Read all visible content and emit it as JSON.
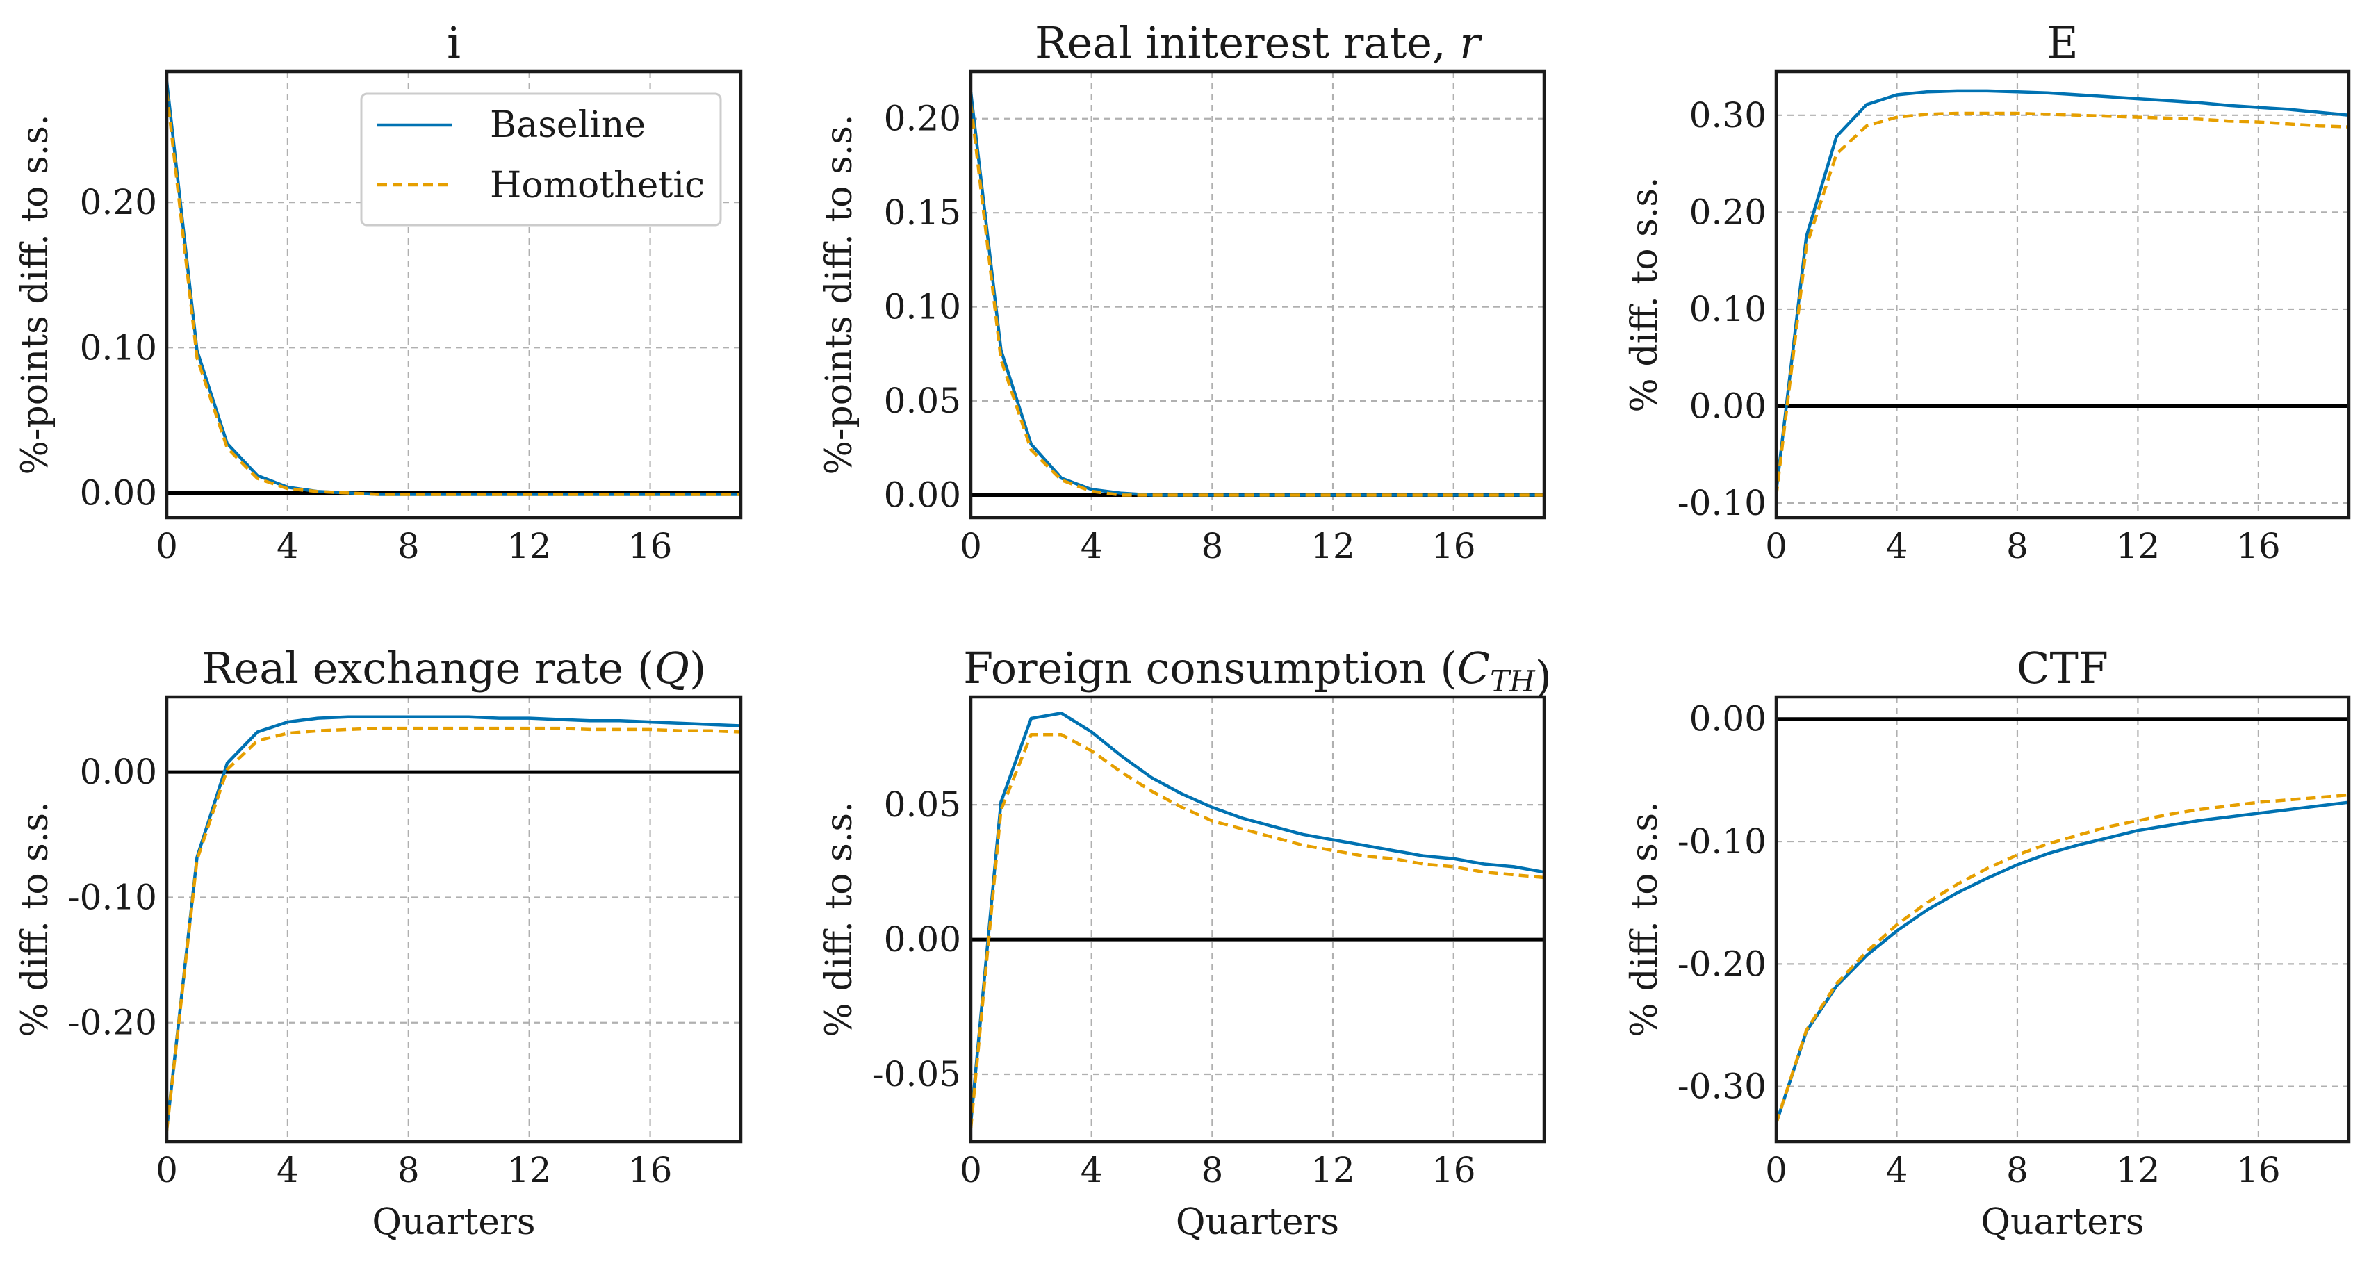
{
  "figure": {
    "legend": {
      "baseline": "Baseline",
      "homothetic": "Homothetic"
    },
    "colors": {
      "baseline": "#0072B2",
      "homothetic": "#E69F00",
      "zero_line": "#000000",
      "grid": "#b0b0b0"
    }
  },
  "chart_data": [
    {
      "type": "line",
      "title": "i",
      "title_parts": [
        {
          "text": "i"
        }
      ],
      "xlabel": "",
      "ylabel": "%-points diff. to s.s.",
      "xlim": [
        0,
        19
      ],
      "ylim": [
        -0.017,
        0.29
      ],
      "xticks": [
        0,
        4,
        8,
        12,
        16
      ],
      "xtick_labels": [
        "0",
        "4",
        "8",
        "12",
        "16"
      ],
      "yticks": [
        0.0,
        0.1,
        0.2
      ],
      "ytick_labels": [
        "0.00",
        "0.10",
        "0.20"
      ],
      "zero_line": true,
      "grid": true,
      "legend": "top-right",
      "x": [
        0,
        1,
        2,
        3,
        4,
        5,
        6,
        7,
        8,
        9,
        10,
        11,
        12,
        13,
        14,
        15,
        16,
        17,
        18,
        19
      ],
      "series": [
        {
          "name": "Baseline",
          "style": "solid",
          "values": [
            0.283,
            0.098,
            0.034,
            0.012,
            0.004,
            0.001,
            0.0,
            -0.001,
            -0.001,
            -0.001,
            -0.001,
            -0.001,
            -0.001,
            -0.001,
            -0.001,
            -0.001,
            -0.001,
            -0.001,
            -0.001,
            -0.001
          ]
        },
        {
          "name": "Homothetic",
          "style": "dashed",
          "values": [
            0.276,
            0.093,
            0.031,
            0.01,
            0.003,
            0.001,
            0.0,
            -0.001,
            -0.001,
            -0.001,
            -0.001,
            -0.001,
            -0.001,
            -0.001,
            -0.001,
            -0.001,
            -0.001,
            -0.001,
            -0.001,
            -0.001
          ]
        }
      ]
    },
    {
      "type": "line",
      "title": "Real initerest rate, r",
      "title_parts": [
        {
          "text": "Real initerest rate, "
        },
        {
          "text": "r",
          "italic": true
        }
      ],
      "xlabel": "",
      "ylabel": "%-points diff. to s.s.",
      "xlim": [
        0,
        19
      ],
      "ylim": [
        -0.012,
        0.225
      ],
      "xticks": [
        0,
        4,
        8,
        12,
        16
      ],
      "xtick_labels": [
        "0",
        "4",
        "8",
        "12",
        "16"
      ],
      "yticks": [
        0.0,
        0.05,
        0.1,
        0.15,
        0.2
      ],
      "ytick_labels": [
        "0.00",
        "0.05",
        "0.10",
        "0.15",
        "0.20"
      ],
      "zero_line": true,
      "grid": true,
      "x": [
        0,
        1,
        2,
        3,
        4,
        5,
        6,
        7,
        8,
        9,
        10,
        11,
        12,
        13,
        14,
        15,
        16,
        17,
        18,
        19
      ],
      "series": [
        {
          "name": "Baseline",
          "style": "solid",
          "values": [
            0.214,
            0.077,
            0.027,
            0.009,
            0.003,
            0.001,
            0.0,
            0.0,
            0.0,
            0.0,
            0.0,
            0.0,
            0.0,
            0.0,
            0.0,
            0.0,
            0.0,
            0.0,
            0.0,
            0.0
          ]
        },
        {
          "name": "Homothetic",
          "style": "dashed",
          "values": [
            0.208,
            0.072,
            0.024,
            0.008,
            0.002,
            0.0,
            0.0,
            0.0,
            0.0,
            0.0,
            0.0,
            0.0,
            0.0,
            0.0,
            0.0,
            0.0,
            0.0,
            0.0,
            0.0,
            0.0
          ]
        }
      ]
    },
    {
      "type": "line",
      "title": "E",
      "title_parts": [
        {
          "text": "E"
        }
      ],
      "xlabel": "",
      "ylabel": "% diff. to s.s.",
      "xlim": [
        0,
        19
      ],
      "ylim": [
        -0.115,
        0.345
      ],
      "xticks": [
        0,
        4,
        8,
        12,
        16
      ],
      "xtick_labels": [
        "0",
        "4",
        "8",
        "12",
        "16"
      ],
      "yticks": [
        -0.1,
        0.0,
        0.1,
        0.2,
        0.3
      ],
      "ytick_labels": [
        "-0.10",
        "0.00",
        "0.10",
        "0.20",
        "0.30"
      ],
      "zero_line": true,
      "grid": true,
      "x": [
        0,
        1,
        2,
        3,
        4,
        5,
        6,
        7,
        8,
        9,
        10,
        11,
        12,
        13,
        14,
        15,
        16,
        17,
        18,
        19
      ],
      "series": [
        {
          "name": "Baseline",
          "style": "solid",
          "values": [
            -0.088,
            0.175,
            0.278,
            0.311,
            0.321,
            0.324,
            0.325,
            0.325,
            0.324,
            0.323,
            0.321,
            0.319,
            0.317,
            0.315,
            0.313,
            0.31,
            0.308,
            0.306,
            0.303,
            0.3
          ]
        },
        {
          "name": "Homothetic",
          "style": "dashed",
          "values": [
            -0.093,
            0.165,
            0.26,
            0.289,
            0.298,
            0.301,
            0.302,
            0.302,
            0.302,
            0.301,
            0.3,
            0.299,
            0.298,
            0.297,
            0.296,
            0.294,
            0.293,
            0.291,
            0.289,
            0.288
          ]
        }
      ]
    },
    {
      "type": "line",
      "title": "Real exchange rate (Q)",
      "title_parts": [
        {
          "text": "Real exchange rate ("
        },
        {
          "text": "Q",
          "italic": true
        },
        {
          "text": ")"
        }
      ],
      "xlabel": "Quarters",
      "ylabel": "% diff. to s.s.",
      "xlim": [
        0,
        19
      ],
      "ylim": [
        -0.295,
        0.06
      ],
      "xticks": [
        0,
        4,
        8,
        12,
        16
      ],
      "xtick_labels": [
        "0",
        "4",
        "8",
        "12",
        "16"
      ],
      "yticks": [
        -0.2,
        -0.1,
        0.0
      ],
      "ytick_labels": [
        "-0.20",
        "-0.10",
        "0.00"
      ],
      "zero_line": true,
      "grid": true,
      "x": [
        0,
        1,
        2,
        3,
        4,
        5,
        6,
        7,
        8,
        9,
        10,
        11,
        12,
        13,
        14,
        15,
        16,
        17,
        18,
        19
      ],
      "series": [
        {
          "name": "Baseline",
          "style": "solid",
          "values": [
            -0.285,
            -0.068,
            0.007,
            0.032,
            0.04,
            0.043,
            0.044,
            0.044,
            0.044,
            0.044,
            0.044,
            0.043,
            0.043,
            0.042,
            0.041,
            0.041,
            0.04,
            0.039,
            0.038,
            0.037
          ]
        },
        {
          "name": "Homothetic",
          "style": "dashed",
          "values": [
            -0.286,
            -0.07,
            0.002,
            0.025,
            0.031,
            0.033,
            0.034,
            0.035,
            0.035,
            0.035,
            0.035,
            0.035,
            0.035,
            0.035,
            0.034,
            0.034,
            0.034,
            0.033,
            0.033,
            0.032
          ]
        }
      ]
    },
    {
      "type": "line",
      "title": "Foreign consumption (C_TH)",
      "title_parts": [
        {
          "text": "Foreign consumption ("
        },
        {
          "text": "C",
          "italic": true
        },
        {
          "text": "TH",
          "italic": true,
          "sub": true
        },
        {
          "text": ")"
        }
      ],
      "xlabel": "Quarters",
      "ylabel": "% diff. to s.s.",
      "xlim": [
        0,
        19
      ],
      "ylim": [
        -0.075,
        0.09
      ],
      "xticks": [
        0,
        4,
        8,
        12,
        16
      ],
      "xtick_labels": [
        "0",
        "4",
        "8",
        "12",
        "16"
      ],
      "yticks": [
        -0.05,
        0.0,
        0.05
      ],
      "ytick_labels": [
        "-0.05",
        "0.00",
        "0.05"
      ],
      "zero_line": true,
      "grid": true,
      "x": [
        0,
        1,
        2,
        3,
        4,
        5,
        6,
        7,
        8,
        9,
        10,
        11,
        12,
        13,
        14,
        15,
        16,
        17,
        18,
        19
      ],
      "series": [
        {
          "name": "Baseline",
          "style": "solid",
          "values": [
            -0.068,
            0.051,
            0.082,
            0.084,
            0.077,
            0.068,
            0.06,
            0.054,
            0.049,
            0.045,
            0.042,
            0.039,
            0.037,
            0.035,
            0.033,
            0.031,
            0.03,
            0.028,
            0.027,
            0.025
          ]
        },
        {
          "name": "Homothetic",
          "style": "dashed",
          "values": [
            -0.07,
            0.048,
            0.076,
            0.076,
            0.07,
            0.062,
            0.055,
            0.049,
            0.044,
            0.041,
            0.038,
            0.035,
            0.033,
            0.031,
            0.03,
            0.028,
            0.027,
            0.025,
            0.024,
            0.023
          ]
        }
      ]
    },
    {
      "type": "line",
      "title": "CTF",
      "title_parts": [
        {
          "text": "CTF"
        }
      ],
      "xlabel": "Quarters",
      "ylabel": "% diff. to s.s.",
      "xlim": [
        0,
        19
      ],
      "ylim": [
        -0.345,
        0.018
      ],
      "xticks": [
        0,
        4,
        8,
        12,
        16
      ],
      "xtick_labels": [
        "0",
        "4",
        "8",
        "12",
        "16"
      ],
      "yticks": [
        -0.3,
        -0.2,
        -0.1,
        0.0
      ],
      "ytick_labels": [
        "-0.30",
        "-0.20",
        "-0.10",
        "0.00"
      ],
      "zero_line": true,
      "grid": true,
      "x": [
        0,
        1,
        2,
        3,
        4,
        5,
        6,
        7,
        8,
        9,
        10,
        11,
        12,
        13,
        14,
        15,
        16,
        17,
        18,
        19
      ],
      "series": [
        {
          "name": "Baseline",
          "style": "solid",
          "values": [
            -0.33,
            -0.255,
            -0.218,
            -0.193,
            -0.173,
            -0.156,
            -0.142,
            -0.13,
            -0.119,
            -0.11,
            -0.103,
            -0.097,
            -0.091,
            -0.087,
            -0.083,
            -0.08,
            -0.077,
            -0.074,
            -0.071,
            -0.068
          ]
        },
        {
          "name": "Homothetic",
          "style": "dashed",
          "values": [
            -0.33,
            -0.254,
            -0.216,
            -0.19,
            -0.168,
            -0.15,
            -0.135,
            -0.122,
            -0.111,
            -0.102,
            -0.095,
            -0.088,
            -0.083,
            -0.078,
            -0.074,
            -0.071,
            -0.068,
            -0.066,
            -0.064,
            -0.062
          ]
        }
      ]
    }
  ]
}
